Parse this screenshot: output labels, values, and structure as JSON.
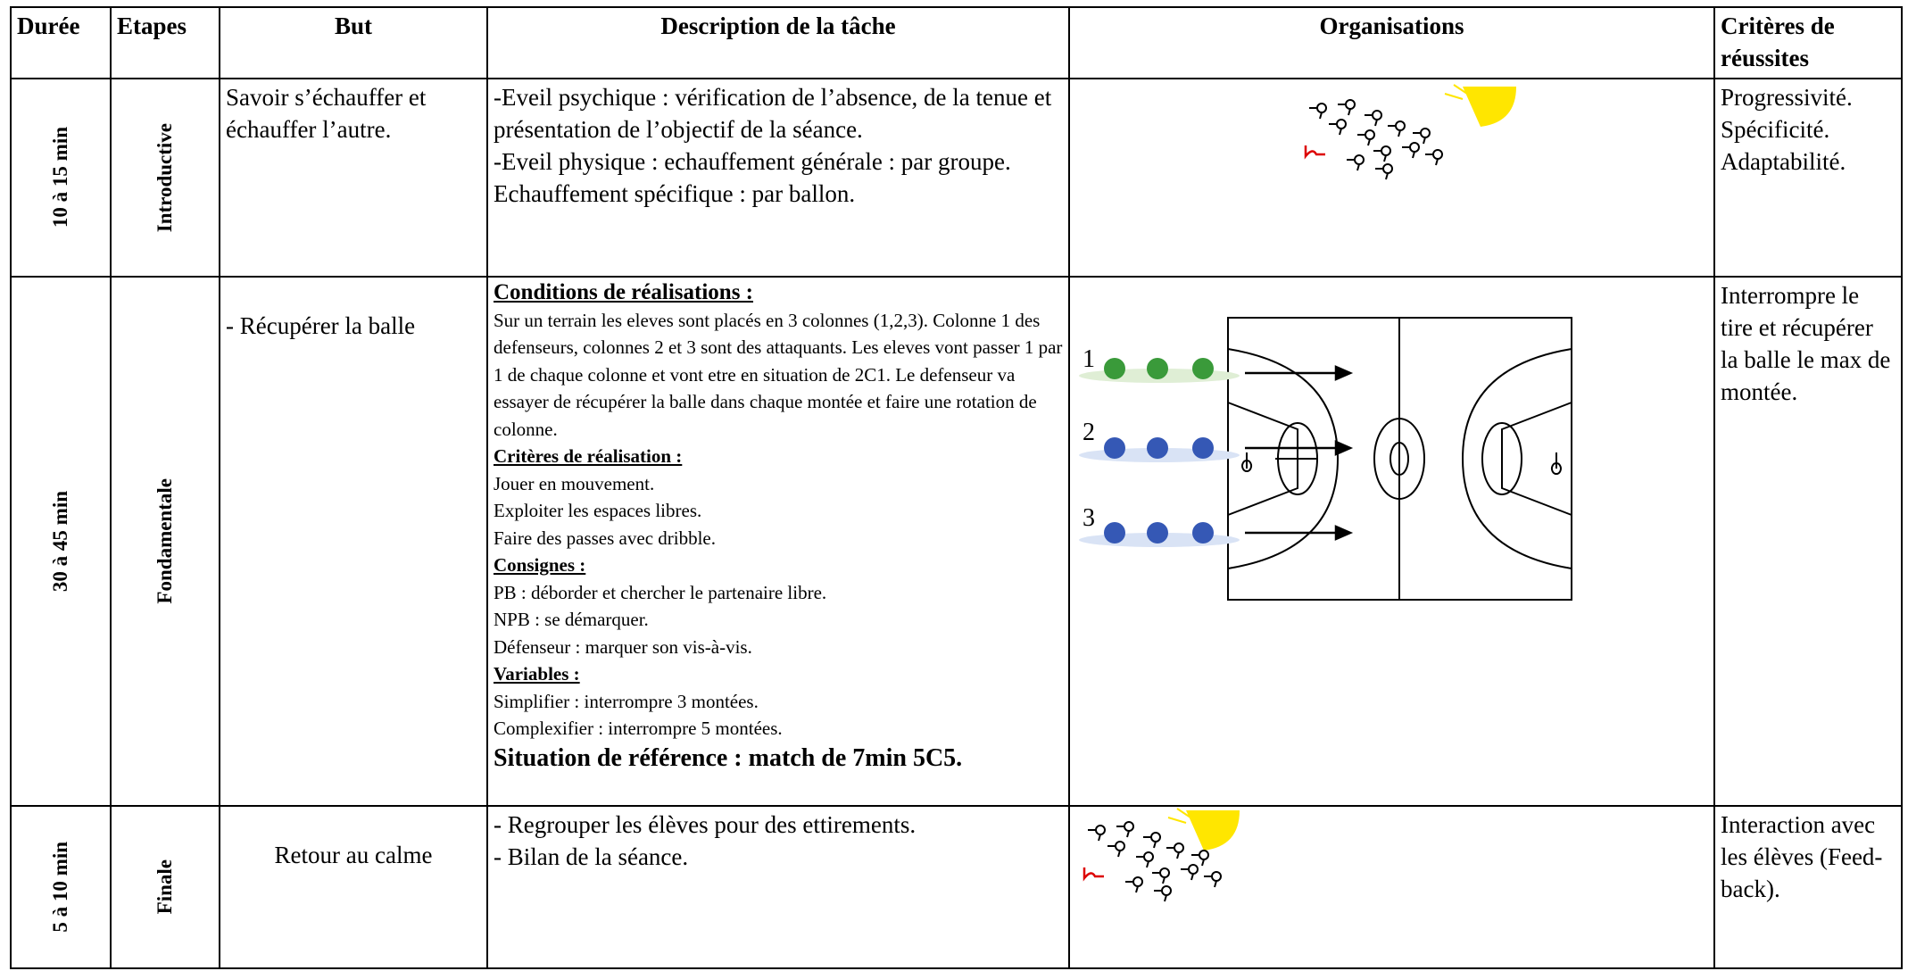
{
  "table": {
    "headers": [
      "Durée",
      "Etapes",
      "But",
      "Description de la tâche",
      "Organisations",
      "Critères de réussites"
    ],
    "rows": [
      {
        "duration": "10 à 15 min",
        "stage": "Introductive",
        "goal": "Savoir s’échauffer et échauffer l’autre.",
        "description": [
          "-Eveil psychique : vérification de l’absence, de la tenue et présentation de l’objectif de la séance.",
          "-Eveil physique : echauffement générale : par groupe.",
          "Echauffement spécifique : par ballon."
        ],
        "criteria": [
          "Progressivité.",
          "Spécificité.",
          "Adaptabilité."
        ]
      },
      {
        "duration": "30 à 45 min",
        "stage": "Fondamentale",
        "goal": "- Récupérer la balle",
        "description": [
          "Conditions de réalisations :",
          "Sur un terrain les eleves sont placés en 3 colonnes (1,2,3). Colonne 1 des defenseurs, colonnes 2 et 3 sont des attaquants. Les eleves vont passer 1 par 1 de chaque colonne et vont etre en situation de 2C1. Le defenseur va essayer de récupérer la balle dans chaque montée et faire une rotation de colonne.",
          "Critères de réalisation :",
          "Jouer en mouvement.",
          "Exploiter les espaces libres.",
          "Faire des passes avec dribble.",
          "Consignes :",
          "PB : déborder et chercher le partenaire libre.",
          "NPB : se démarquer.",
          "Défenseur : marquer son vis-à-vis.",
          "Variables :",
          "Simplifier : interrompre 3 montées.",
          "Complexifier : interrompre 5 montées.",
          "Situation de référence : match de 7min 5C5."
        ],
        "column_labels": [
          "1",
          "2",
          "3"
        ],
        "criteria": [
          "Interrompre le tire et récupérer la balle le max de montée."
        ]
      },
      {
        "duration": "5 à 10 min",
        "stage": "Finale",
        "goal": "Retour au calme",
        "description": [
          "- Regrouper les élèves pour des ettirements.",
          "- Bilan de la séance."
        ],
        "criteria": [
          "Interaction avec les élèves (Feed-back)."
        ]
      }
    ]
  }
}
